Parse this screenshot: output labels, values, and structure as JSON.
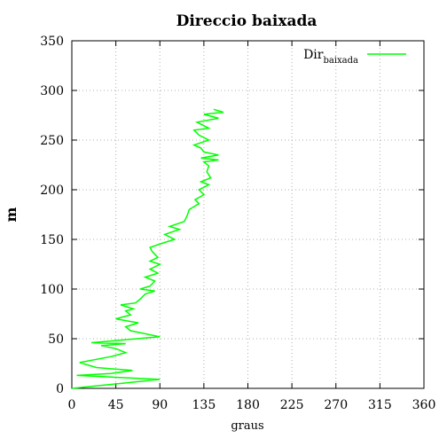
{
  "chart_data": {
    "type": "line",
    "title": "Direccio baixada",
    "xlabel": "graus",
    "ylabel": "m",
    "xlim": [
      0,
      360
    ],
    "ylim": [
      0,
      350
    ],
    "xticks": [
      0,
      45,
      90,
      135,
      180,
      225,
      270,
      315,
      360
    ],
    "yticks": [
      0,
      50,
      100,
      150,
      200,
      250,
      300,
      350
    ],
    "grid": true,
    "legend": {
      "position": "top-right",
      "label_main": "Dir",
      "label_sub": "baixada"
    },
    "series": [
      {
        "name": "Dirbaixada",
        "color": "#00ff00",
        "points": [
          [
            0,
            0
          ],
          [
            90,
            9
          ],
          [
            5,
            13
          ],
          [
            40,
            15
          ],
          [
            62,
            18
          ],
          [
            25,
            21
          ],
          [
            8,
            26
          ],
          [
            40,
            32
          ],
          [
            55,
            36
          ],
          [
            45,
            40
          ],
          [
            30,
            43
          ],
          [
            55,
            45
          ],
          [
            20,
            46
          ],
          [
            90,
            52
          ],
          [
            60,
            58
          ],
          [
            55,
            62
          ],
          [
            68,
            66
          ],
          [
            45,
            70
          ],
          [
            60,
            74
          ],
          [
            55,
            78
          ],
          [
            63,
            80
          ],
          [
            50,
            84
          ],
          [
            65,
            86
          ],
          [
            70,
            90
          ],
          [
            75,
            95
          ],
          [
            85,
            98
          ],
          [
            70,
            100
          ],
          [
            80,
            103
          ],
          [
            85,
            108
          ],
          [
            75,
            112
          ],
          [
            88,
            116
          ],
          [
            80,
            120
          ],
          [
            90,
            125
          ],
          [
            80,
            128
          ],
          [
            88,
            132
          ],
          [
            82,
            138
          ],
          [
            80,
            142
          ],
          [
            92,
            146
          ],
          [
            105,
            150
          ],
          [
            95,
            155
          ],
          [
            110,
            160
          ],
          [
            100,
            163
          ],
          [
            115,
            168
          ],
          [
            118,
            174
          ],
          [
            120,
            180
          ],
          [
            125,
            183
          ],
          [
            130,
            186
          ],
          [
            126,
            190
          ],
          [
            135,
            195
          ],
          [
            130,
            200
          ],
          [
            140,
            205
          ],
          [
            132,
            208
          ],
          [
            142,
            212
          ],
          [
            138,
            218
          ],
          [
            140,
            224
          ],
          [
            135,
            228
          ],
          [
            150,
            230
          ],
          [
            132,
            232
          ],
          [
            150,
            235
          ],
          [
            135,
            238
          ],
          [
            132,
            242
          ],
          [
            125,
            245
          ],
          [
            140,
            250
          ],
          [
            130,
            255
          ],
          [
            125,
            260
          ],
          [
            140,
            262
          ],
          [
            128,
            268
          ],
          [
            150,
            272
          ],
          [
            135,
            276
          ],
          [
            155,
            278
          ],
          [
            145,
            281
          ]
        ]
      }
    ]
  }
}
